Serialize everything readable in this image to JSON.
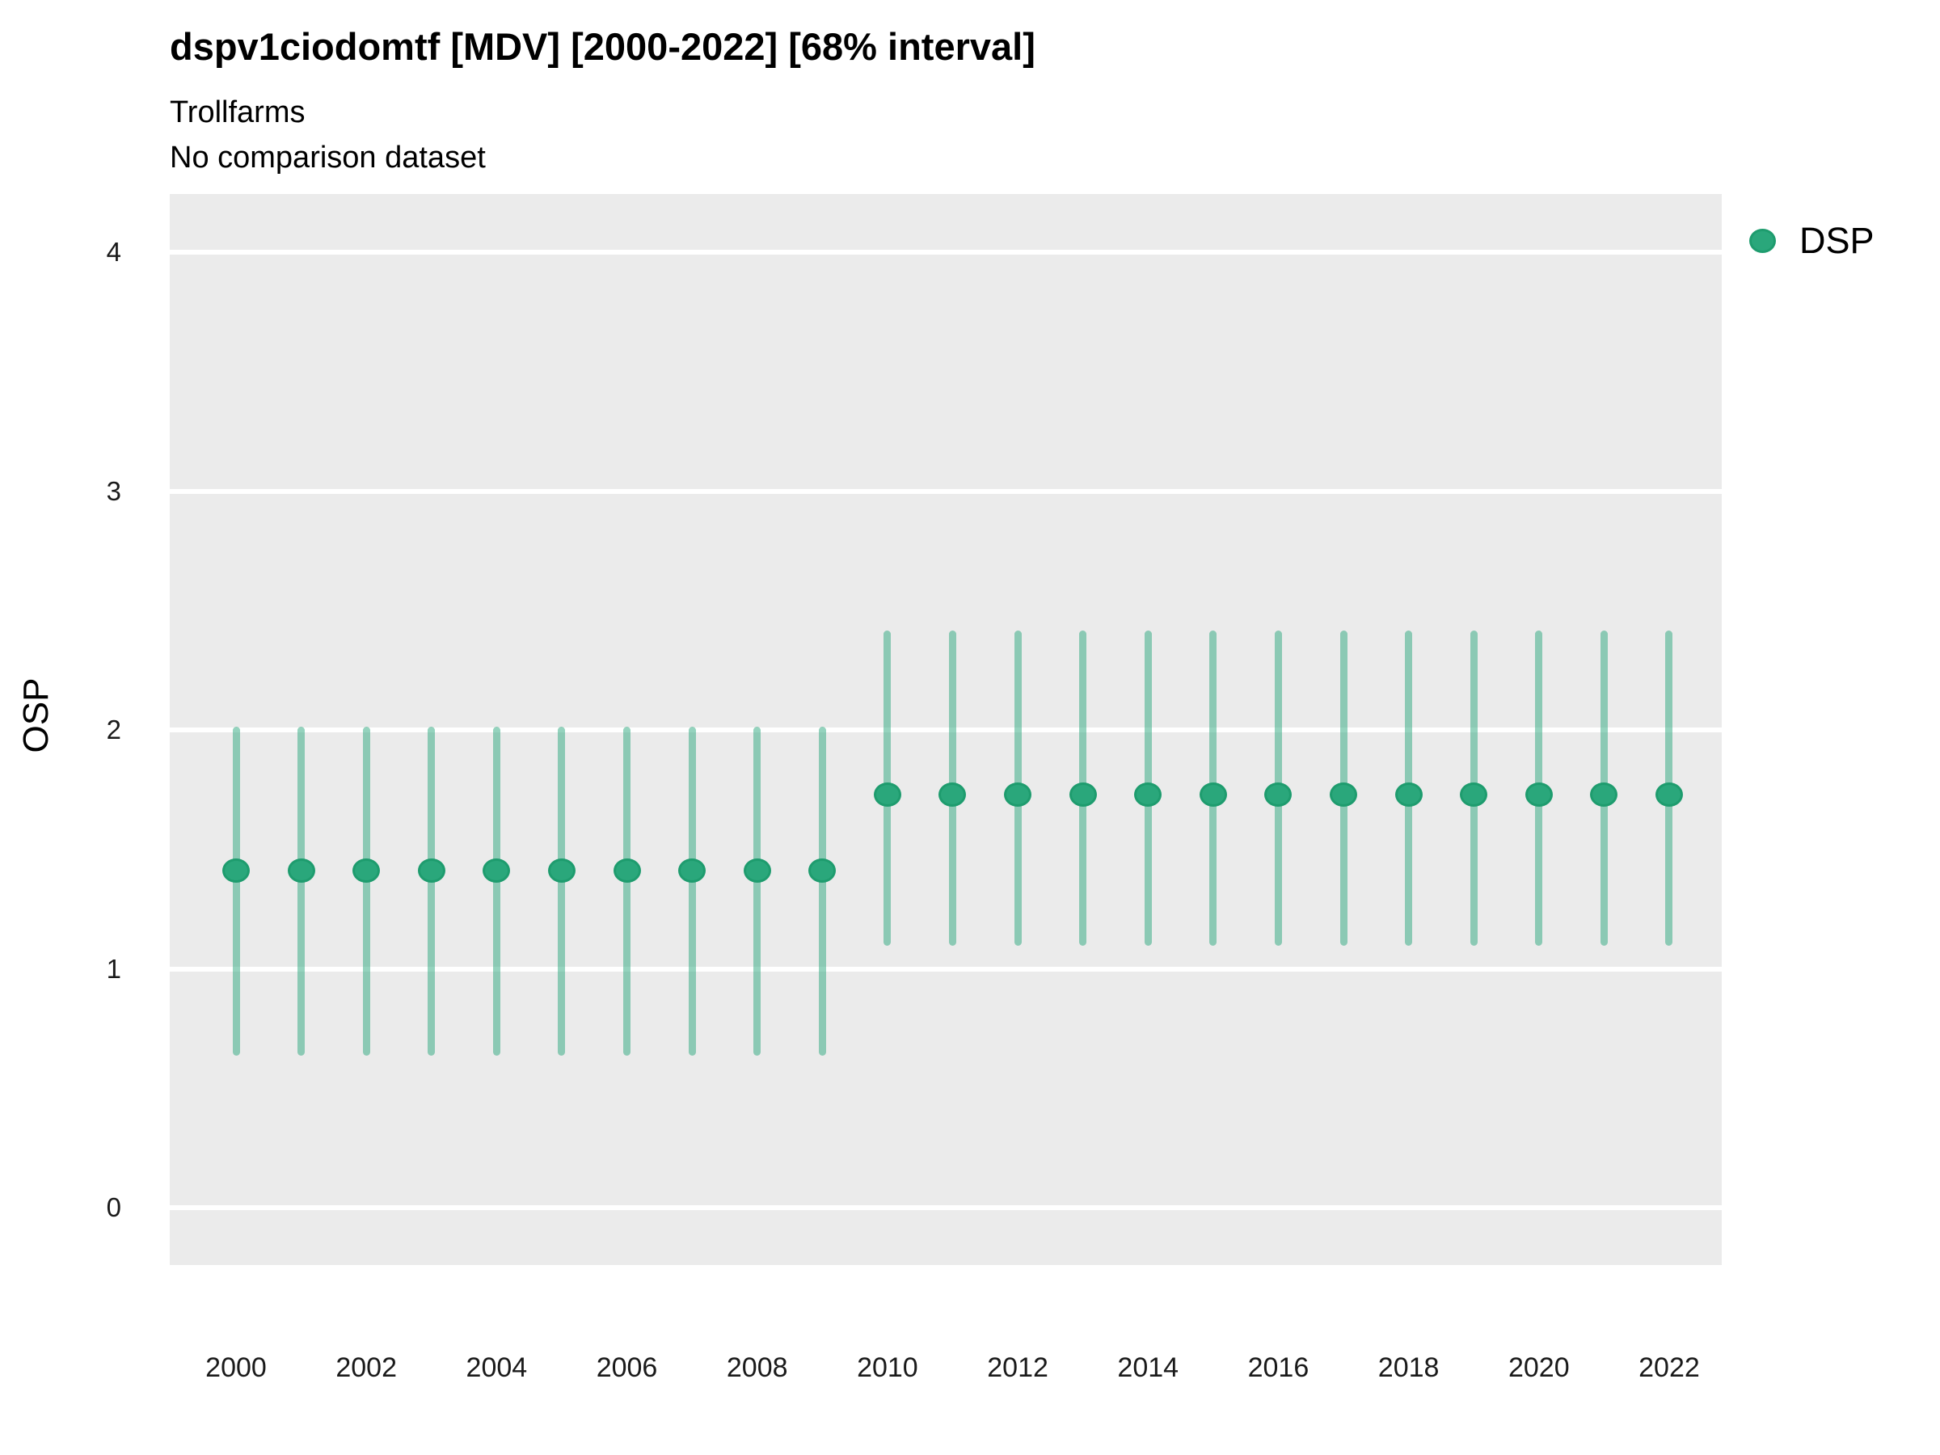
{
  "header": {
    "title": "dspv1ciodomtf [MDV] [2000-2022] [68% interval]",
    "subtitle1": "Trollfarms",
    "subtitle2": "No comparison dataset"
  },
  "legend": {
    "label": "DSP",
    "marker_color": "#2AA77B"
  },
  "axes": {
    "y_title": "OSP"
  },
  "colors": {
    "panel_background": "#EBEBEB",
    "gridline": "#FFFFFF",
    "point_fill": "#2AA77B",
    "point_border": "#1E9C6E",
    "interval_line": "rgba(44,168,125,0.5)"
  },
  "chart_data": {
    "type": "scatter",
    "subtype": "point-estimates-with-interval-bars",
    "title": "dspv1ciodomtf [MDV] [2000-2022] [68% interval]",
    "subtitle": [
      "Trollfarms",
      "No comparison dataset"
    ],
    "xlabel": "",
    "ylabel": "OSP",
    "interval": "68%",
    "grid": "white major horizontal gridlines on grey panel",
    "legend_position": "right",
    "ylim": [
      -0.24,
      4.24
    ],
    "yticks": [
      0,
      1,
      2,
      3,
      4
    ],
    "xticks": [
      2000,
      2002,
      2004,
      2006,
      2008,
      2010,
      2012,
      2014,
      2016,
      2018,
      2020,
      2022
    ],
    "x": [
      2000,
      2001,
      2002,
      2003,
      2004,
      2005,
      2006,
      2007,
      2008,
      2009,
      2010,
      2011,
      2012,
      2013,
      2014,
      2015,
      2016,
      2017,
      2018,
      2019,
      2020,
      2021,
      2022
    ],
    "series": [
      {
        "name": "DSP",
        "color": "#2AA77B",
        "mid": [
          1.41,
          1.41,
          1.41,
          1.41,
          1.41,
          1.41,
          1.41,
          1.41,
          1.41,
          1.41,
          1.73,
          1.73,
          1.73,
          1.73,
          1.73,
          1.73,
          1.73,
          1.73,
          1.73,
          1.73,
          1.73,
          1.73,
          1.73
        ],
        "lo": [
          0.65,
          0.65,
          0.65,
          0.65,
          0.65,
          0.65,
          0.65,
          0.65,
          0.65,
          0.65,
          1.11,
          1.11,
          1.11,
          1.11,
          1.11,
          1.11,
          1.11,
          1.11,
          1.11,
          1.11,
          1.11,
          1.11,
          1.11
        ],
        "hi": [
          2.0,
          2.0,
          2.0,
          2.0,
          2.0,
          2.0,
          2.0,
          2.0,
          2.0,
          2.0,
          2.4,
          2.4,
          2.4,
          2.4,
          2.4,
          2.4,
          2.4,
          2.4,
          2.4,
          2.4,
          2.4,
          2.4,
          2.4
        ]
      }
    ]
  }
}
